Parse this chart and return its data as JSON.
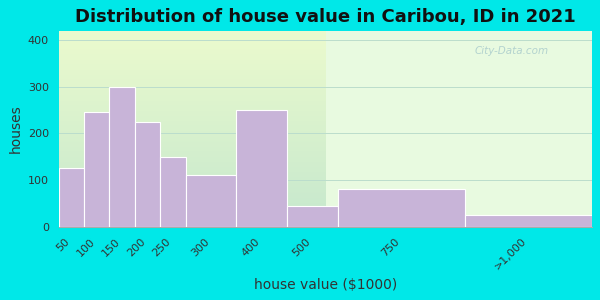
{
  "title": "Distribution of house value in Caribou, ID in 2021",
  "xlabel": "house value ($1000)",
  "ylabel": "houses",
  "bar_labels": [
    "50",
    "100",
    "150",
    "200",
    "250",
    "300",
    "400",
    "500",
    "750",
    ">1,000"
  ],
  "bar_values": [
    125,
    245,
    300,
    225,
    150,
    110,
    250,
    45,
    80,
    25
  ],
  "bar_color": "#c8b4d8",
  "bar_edge_color": "#ffffff",
  "ylim": [
    0,
    420
  ],
  "yticks": [
    0,
    100,
    200,
    300,
    400
  ],
  "background_outer": "#00e8e8",
  "background_inner_top": "#e8fae0",
  "background_inner_bottom": "#c8f0e8",
  "grid_color": "#bbddcc",
  "title_fontsize": 13,
  "axis_label_fontsize": 10,
  "tick_fontsize": 8,
  "watermark": "City-Data.com",
  "x_left_edges": [
    0,
    1,
    2,
    3,
    4,
    5,
    6,
    7,
    8,
    9
  ],
  "bar_widths_norm": [
    1,
    1,
    1,
    1,
    1,
    1,
    1,
    1,
    2,
    2
  ]
}
